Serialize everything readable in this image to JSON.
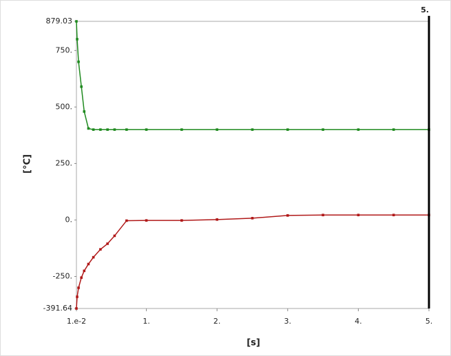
{
  "chart_data": {
    "type": "line",
    "x_label": "[s]",
    "y_label": "[°C]",
    "x": [
      0.01,
      0.02,
      0.04,
      0.08,
      0.12,
      0.18,
      0.25,
      0.35,
      0.45,
      0.55,
      0.72,
      1,
      1.5,
      2,
      2.5,
      3,
      3.5,
      4,
      4.5,
      5
    ],
    "series": [
      {
        "color": "#1f8a1f",
        "values": [
          879.03,
          800,
          700,
          590,
          480,
          405,
          400,
          400,
          400,
          400,
          400,
          400,
          400,
          400,
          400,
          400,
          400,
          400,
          400,
          400
        ]
      },
      {
        "color": "#b01818",
        "values": [
          -391.64,
          -340,
          -300,
          -255,
          -225,
          -195,
          -165,
          -130,
          -105,
          -70,
          -3,
          -2,
          -2,
          2,
          8,
          20,
          22,
          22,
          22,
          22
        ]
      }
    ],
    "xlim": [
      0.01,
      5
    ],
    "ylim": [
      -391.64,
      879.03
    ],
    "xticks": [
      {
        "value": 0.01,
        "label": "1.e-2"
      },
      {
        "value": 1,
        "label": "1."
      },
      {
        "value": 2,
        "label": "2."
      },
      {
        "value": 3,
        "label": "3."
      },
      {
        "value": 4,
        "label": "4."
      },
      {
        "value": 5,
        "label": "5."
      }
    ],
    "yticks": [
      {
        "value": 879.03,
        "label": "879.03"
      },
      {
        "value": 750,
        "label": "750."
      },
      {
        "value": 500,
        "label": "500."
      },
      {
        "value": 250,
        "label": "250."
      },
      {
        "value": 0,
        "label": "0."
      },
      {
        "value": -250,
        "label": "-250."
      },
      {
        "value": -391.64,
        "label": "-391.64"
      }
    ],
    "cursor": {
      "value": 5,
      "label": "5."
    }
  }
}
